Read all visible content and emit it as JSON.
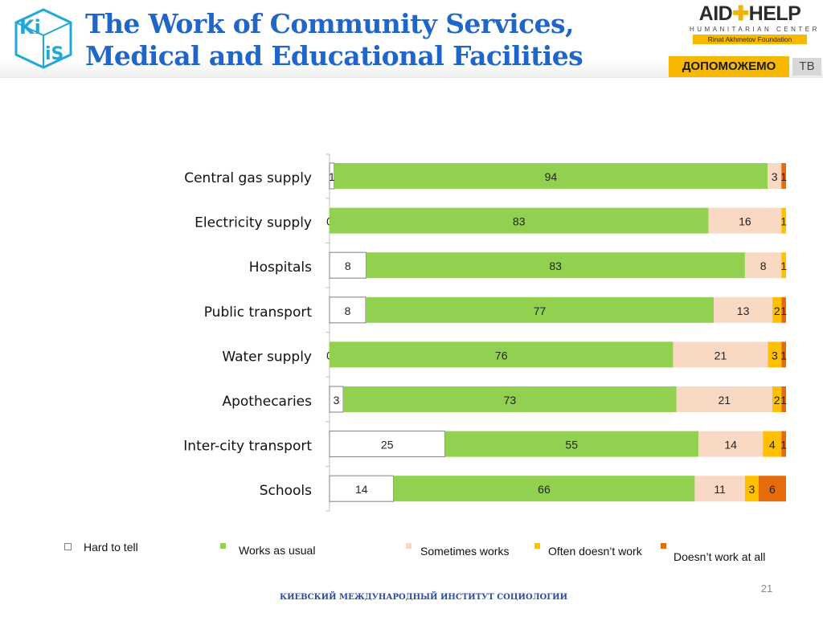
{
  "header": {
    "title_line1": "The Work of Community Services,",
    "title_line2": "Medical and Educational Facilities",
    "logo_left": {
      "text_top": "Ki",
      "text_bottom": "iS",
      "color": "#1fa8d8"
    },
    "logo_right": {
      "name_left": "AID",
      "name_right": "HELP",
      "subtitle": "HUMANITARIAN CENTER",
      "foundation": "Rinat Akhmetov Foundation"
    },
    "badge": {
      "label": "ДОПОМОЖЕМО",
      "tag": "ТВ"
    }
  },
  "chart_data": {
    "type": "bar",
    "orientation": "horizontal",
    "stacked": true,
    "categories": [
      "Central gas supply",
      "Electricity supply",
      "Hospitals",
      "Public transport",
      "Water supply",
      "Apothecaries",
      "Inter-city transport",
      "Schools"
    ],
    "series": [
      {
        "name": "Hard to tell",
        "color": "#ffffff",
        "border": "#7f7f7f",
        "values": [
          1,
          0,
          8,
          8,
          0,
          3,
          25,
          14
        ]
      },
      {
        "name": "Works as usual",
        "color": "#92d050",
        "values": [
          94,
          83,
          83,
          77,
          76,
          73,
          55,
          66
        ]
      },
      {
        "name": "Sometimes works",
        "color": "#fad9c4",
        "values": [
          3,
          16,
          8,
          13,
          21,
          21,
          14,
          11
        ]
      },
      {
        "name": "Often doesn’t work",
        "color": "#ffc000",
        "values": [
          0,
          1,
          1,
          2,
          3,
          2,
          4,
          3
        ]
      },
      {
        "name": "Doesn’t work at all",
        "color": "#e46c0a",
        "values": [
          1,
          0,
          0,
          1,
          1,
          1,
          1,
          6
        ]
      }
    ],
    "data_labels": [
      [
        "1",
        "94",
        "3",
        "",
        "1"
      ],
      [
        "0",
        "83",
        "16",
        "1",
        ""
      ],
      [
        "8",
        "83",
        "8",
        "1",
        ""
      ],
      [
        "8",
        "77",
        "13",
        "2",
        "1"
      ],
      [
        "0",
        "76",
        "21",
        "3",
        "1"
      ],
      [
        "3",
        "73",
        "21",
        "2",
        "1"
      ],
      [
        "25",
        "55",
        "14",
        "4",
        "1"
      ],
      [
        "14",
        "66",
        "11",
        "3",
        "6"
      ]
    ],
    "legend_position": "bottom",
    "grid": false
  },
  "page_number": "21",
  "footer": {
    "text": "КИЕВСКИЙ МЕЖДУНАРОДНЫЙ ИНСТИТУТ СОЦИОЛОГИИ"
  }
}
